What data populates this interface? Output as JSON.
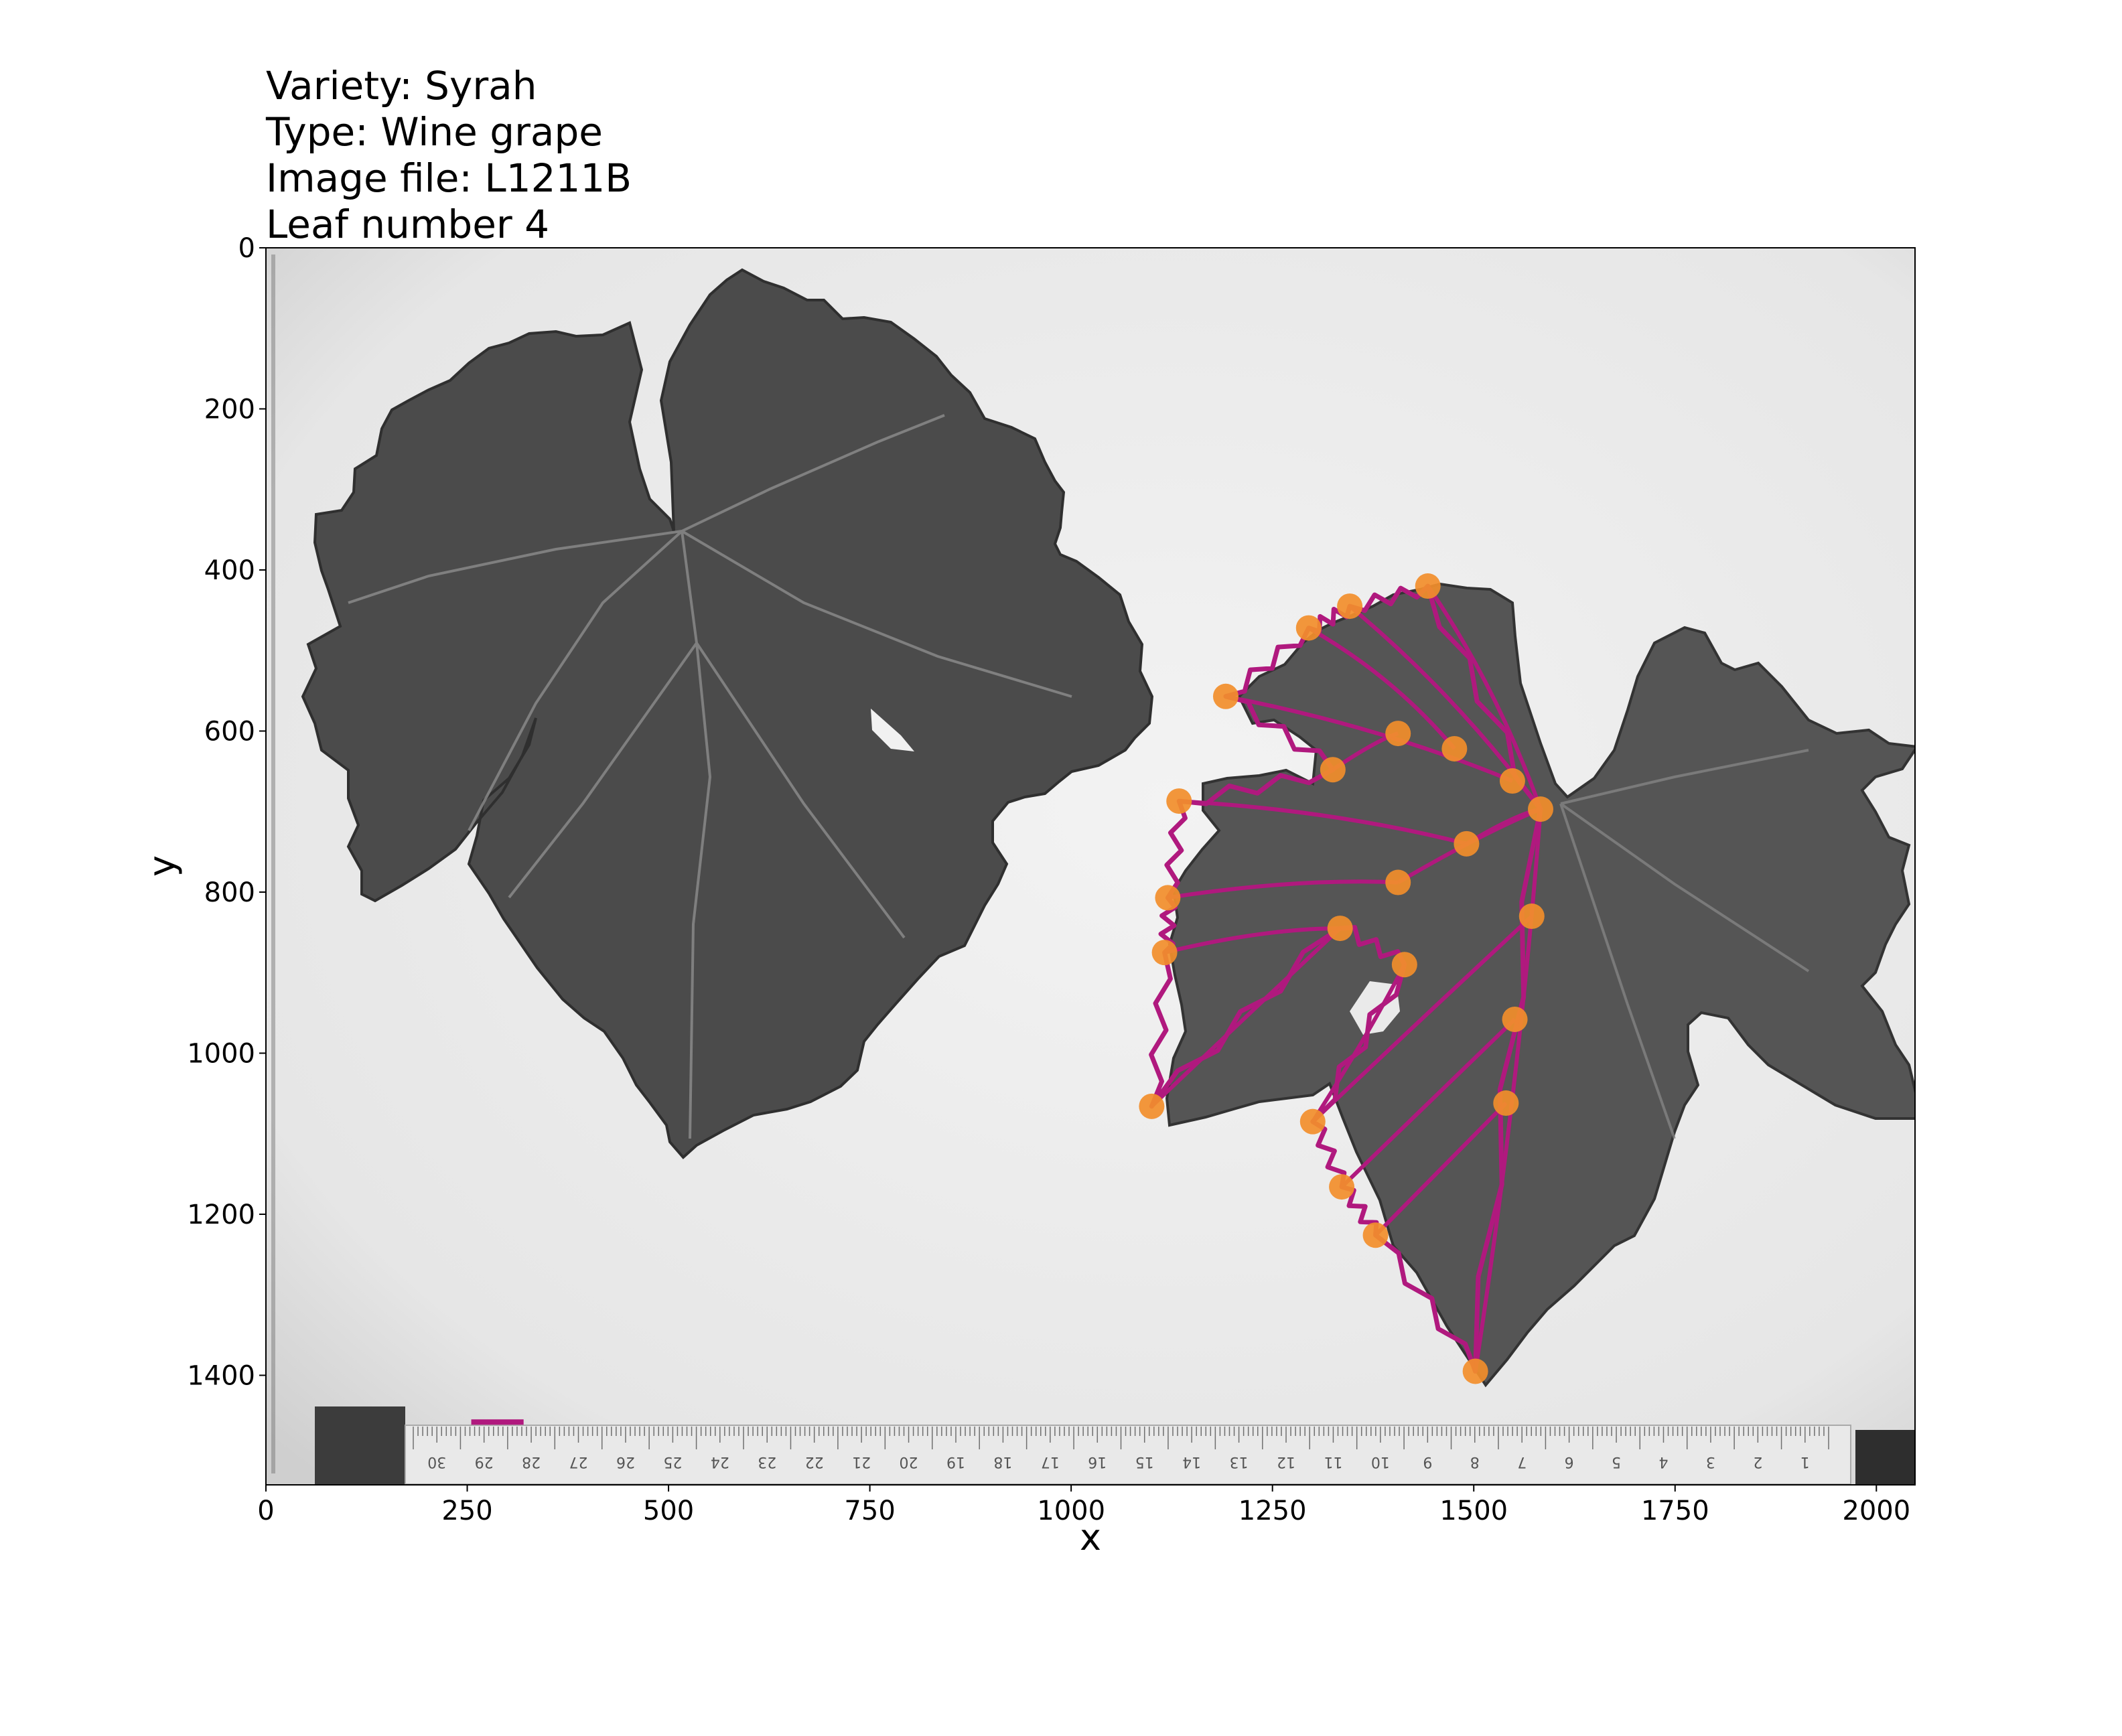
{
  "title_lines": [
    "Variety: Syrah",
    "Type: Wine grape",
    "Image file: L1211B",
    "Leaf number 4"
  ],
  "chart_data": {
    "type": "scatter",
    "title": "Variety: Syrah / Type: Wine grape / Image file: L1211B / Leaf number 4",
    "xlabel": "x",
    "ylabel": "y",
    "xlim": [
      0,
      2048
    ],
    "ylim": [
      1536,
      0
    ],
    "xticks": [
      0,
      250,
      500,
      750,
      1000,
      1250,
      1500,
      1750,
      2000
    ],
    "yticks": [
      0,
      200,
      400,
      600,
      800,
      1000,
      1200,
      1400
    ],
    "background": "grayscale photo of two grape leaves with ruler",
    "landmark_color": "#f28e2b",
    "trace_color": "#b0197e",
    "landmarks": [
      [
        1502,
        1395
      ],
      [
        1583,
        697
      ],
      [
        1443,
        420
      ],
      [
        1346,
        445
      ],
      [
        1295,
        472
      ],
      [
        1192,
        557
      ],
      [
        1325,
        648
      ],
      [
        1134,
        687
      ],
      [
        1120,
        807
      ],
      [
        1116,
        875
      ],
      [
        1100,
        1066
      ],
      [
        1300,
        1085
      ],
      [
        1336,
        1166
      ],
      [
        1378,
        1226
      ],
      [
        1540,
        1062
      ],
      [
        1551,
        958
      ],
      [
        1572,
        830
      ],
      [
        1414,
        890
      ],
      [
        1334,
        845
      ],
      [
        1406,
        788
      ],
      [
        1491,
        740
      ],
      [
        1548,
        662
      ],
      [
        1476,
        622
      ],
      [
        1406,
        603
      ]
    ],
    "scale_bar": {
      "x": [
        255,
        320
      ],
      "y": 1458
    },
    "ruler_labels": [
      "30",
      "29",
      "28",
      "27",
      "26",
      "25",
      "24",
      "23",
      "22",
      "21",
      "20",
      "19",
      "18",
      "17",
      "16",
      "15",
      "14",
      "13",
      "12",
      "11",
      "10",
      "9",
      "8",
      "7",
      "6",
      "5",
      "4",
      "3",
      "2",
      "1"
    ]
  }
}
